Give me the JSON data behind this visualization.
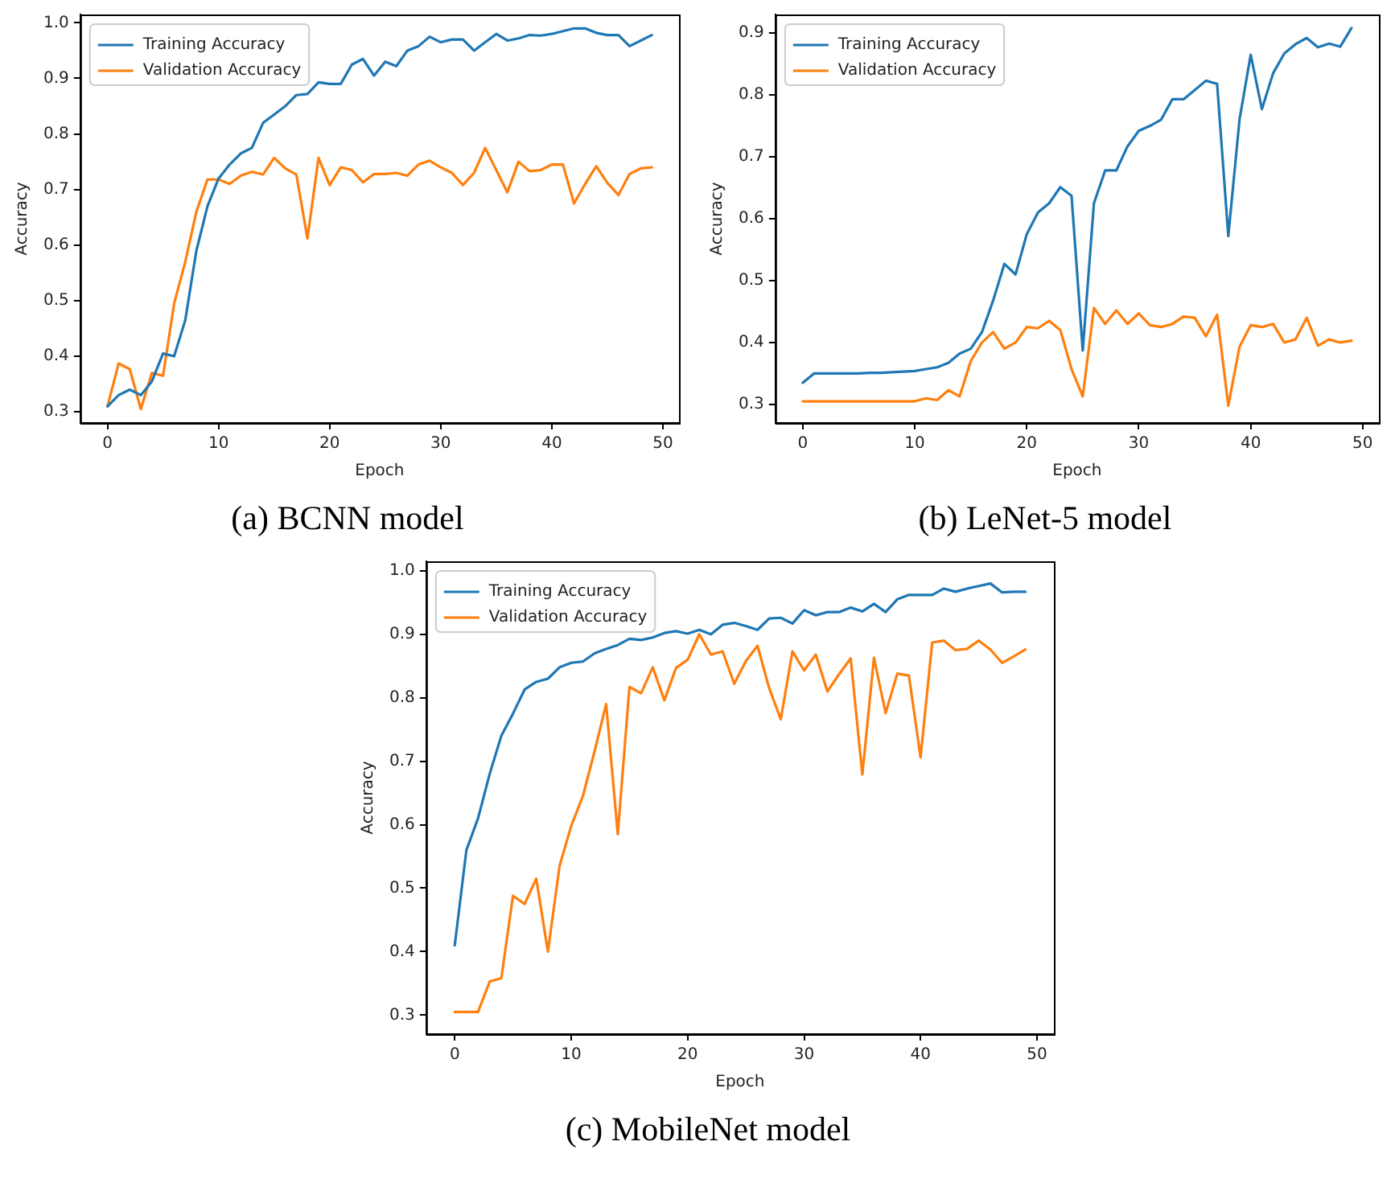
{
  "chart_data": [
    {
      "type": "line",
      "xlabel": "Epoch",
      "ylabel": "Accuracy",
      "annotations": [
        "(a) BCNN model"
      ],
      "legend": "top left",
      "marker": "none",
      "line_style": "solid",
      "x": [
        0,
        1,
        2,
        3,
        4,
        5,
        6,
        7,
        8,
        9,
        10,
        11,
        12,
        13,
        14,
        15,
        16,
        17,
        18,
        19,
        20,
        21,
        22,
        23,
        24,
        25,
        26,
        27,
        28,
        29,
        30,
        31,
        32,
        33,
        34,
        35,
        36,
        37,
        38,
        39,
        40,
        41,
        42,
        43,
        44,
        45,
        46,
        47,
        48,
        49
      ],
      "xlim": [
        -2.45,
        51.45
      ],
      "xticks": [
        0,
        10,
        20,
        30,
        40,
        50
      ],
      "ylim": [
        0.28,
        1.015
      ],
      "yticks": [
        0.3,
        0.4,
        0.5,
        0.6,
        0.7,
        0.8,
        0.9,
        {
          "value": 1,
          "label": "1.0"
        }
      ],
      "series": [
        {
          "name": "Training Accuracy",
          "color": "#1f77b4",
          "values": [
            0.31,
            0.33,
            0.34,
            0.33,
            0.355,
            0.405,
            0.4,
            0.465,
            0.59,
            0.67,
            0.72,
            0.745,
            0.765,
            0.775,
            0.82,
            0.835,
            0.85,
            0.87,
            0.872,
            0.893,
            0.89,
            0.89,
            0.925,
            0.935,
            0.905,
            0.93,
            0.922,
            0.95,
            0.958,
            0.975,
            0.965,
            0.97,
            0.97,
            0.95,
            0.965,
            0.98,
            0.968,
            0.972,
            0.978,
            0.977,
            0.98,
            0.985,
            0.99,
            0.99,
            0.982,
            0.978,
            0.978,
            0.958,
            0.968,
            0.978
          ]
        },
        {
          "name": "Validation Accuracy",
          "color": "#ff7f0e",
          "values": [
            0.31,
            0.387,
            0.377,
            0.305,
            0.37,
            0.365,
            0.495,
            0.57,
            0.66,
            0.718,
            0.718,
            0.71,
            0.725,
            0.732,
            0.727,
            0.757,
            0.738,
            0.727,
            0.612,
            0.757,
            0.708,
            0.74,
            0.735,
            0.713,
            0.728,
            0.728,
            0.73,
            0.725,
            0.745,
            0.752,
            0.74,
            0.73,
            0.708,
            0.73,
            0.775,
            0.735,
            0.695,
            0.75,
            0.733,
            0.735,
            0.745,
            0.745,
            0.675,
            0.71,
            0.742,
            0.712,
            0.69,
            0.728,
            0.738,
            0.74
          ]
        }
      ]
    },
    {
      "type": "line",
      "xlabel": "Epoch",
      "ylabel": "Accuracy",
      "annotations": [
        "(b) LeNet-5 model"
      ],
      "legend": "top left",
      "marker": "none",
      "line_style": "solid",
      "x": [
        0,
        1,
        2,
        3,
        4,
        5,
        6,
        7,
        8,
        9,
        10,
        11,
        12,
        13,
        14,
        15,
        16,
        17,
        18,
        19,
        20,
        21,
        22,
        23,
        24,
        25,
        26,
        27,
        28,
        29,
        30,
        31,
        32,
        33,
        34,
        35,
        36,
        37,
        38,
        39,
        40,
        41,
        42,
        43,
        44,
        45,
        46,
        47,
        48,
        49
      ],
      "xlim": [
        -2.45,
        51.45
      ],
      "xticks": [
        0,
        10,
        20,
        30,
        40,
        50
      ],
      "ylim": [
        0.27,
        0.93
      ],
      "yticks": [
        0.3,
        0.4,
        0.5,
        0.6,
        0.7,
        0.8,
        0.9
      ],
      "series": [
        {
          "name": "Training Accuracy",
          "color": "#1f77b4",
          "values": [
            0.335,
            0.35,
            0.35,
            0.35,
            0.35,
            0.35,
            0.351,
            0.351,
            0.352,
            0.353,
            0.354,
            0.357,
            0.36,
            0.367,
            0.382,
            0.39,
            0.417,
            0.468,
            0.527,
            0.51,
            0.575,
            0.61,
            0.625,
            0.651,
            0.637,
            0.387,
            0.625,
            0.678,
            0.678,
            0.717,
            0.742,
            0.75,
            0.76,
            0.793,
            0.793,
            0.808,
            0.823,
            0.818,
            0.572,
            0.76,
            0.865,
            0.777,
            0.835,
            0.867,
            0.882,
            0.892,
            0.877,
            0.883,
            0.878,
            0.908
          ]
        },
        {
          "name": "Validation Accuracy",
          "color": "#ff7f0e",
          "values": [
            0.305,
            0.305,
            0.305,
            0.305,
            0.305,
            0.305,
            0.305,
            0.305,
            0.305,
            0.305,
            0.305,
            0.31,
            0.307,
            0.323,
            0.313,
            0.37,
            0.4,
            0.417,
            0.39,
            0.4,
            0.425,
            0.423,
            0.435,
            0.42,
            0.357,
            0.313,
            0.456,
            0.43,
            0.452,
            0.43,
            0.447,
            0.428,
            0.425,
            0.43,
            0.442,
            0.44,
            0.41,
            0.445,
            0.298,
            0.393,
            0.428,
            0.425,
            0.43,
            0.4,
            0.405,
            0.44,
            0.395,
            0.405,
            0.4,
            0.403
          ]
        }
      ]
    },
    {
      "type": "line",
      "xlabel": "Epoch",
      "ylabel": "Accuracy",
      "annotations": [
        "(c) MobileNet model"
      ],
      "legend": "top left",
      "marker": "none",
      "line_style": "solid",
      "x": [
        0,
        1,
        2,
        3,
        4,
        5,
        6,
        7,
        8,
        9,
        10,
        11,
        12,
        13,
        14,
        15,
        16,
        17,
        18,
        19,
        20,
        21,
        22,
        23,
        24,
        25,
        26,
        27,
        28,
        29,
        30,
        31,
        32,
        33,
        34,
        35,
        36,
        37,
        38,
        39,
        40,
        41,
        42,
        43,
        44,
        45,
        46,
        47,
        48,
        49
      ],
      "xlim": [
        -2.45,
        51.45
      ],
      "xticks": [
        0,
        10,
        20,
        30,
        40,
        50
      ],
      "ylim": [
        0.27,
        1.015
      ],
      "yticks": [
        0.3,
        0.4,
        0.5,
        0.6,
        0.7,
        0.8,
        0.9,
        {
          "value": 1,
          "label": "1.0"
        }
      ],
      "series": [
        {
          "name": "Training Accuracy",
          "color": "#1f77b4",
          "values": [
            0.41,
            0.56,
            0.61,
            0.68,
            0.74,
            0.775,
            0.813,
            0.825,
            0.83,
            0.848,
            0.855,
            0.857,
            0.87,
            0.877,
            0.883,
            0.893,
            0.891,
            0.895,
            0.902,
            0.905,
            0.901,
            0.907,
            0.9,
            0.915,
            0.918,
            0.913,
            0.907,
            0.925,
            0.926,
            0.917,
            0.938,
            0.93,
            0.935,
            0.935,
            0.942,
            0.936,
            0.948,
            0.935,
            0.955,
            0.962,
            0.962,
            0.962,
            0.972,
            0.967,
            0.972,
            0.976,
            0.98,
            0.966,
            0.967,
            0.967
          ]
        },
        {
          "name": "Validation Accuracy",
          "color": "#ff7f0e",
          "values": [
            0.305,
            0.305,
            0.305,
            0.353,
            0.358,
            0.488,
            0.475,
            0.515,
            0.4,
            0.535,
            0.598,
            0.645,
            0.715,
            0.79,
            0.585,
            0.817,
            0.807,
            0.848,
            0.796,
            0.847,
            0.86,
            0.9,
            0.868,
            0.873,
            0.822,
            0.858,
            0.882,
            0.815,
            0.766,
            0.873,
            0.843,
            0.868,
            0.81,
            0.837,
            0.862,
            0.679,
            0.863,
            0.776,
            0.838,
            0.835,
            0.706,
            0.887,
            0.89,
            0.875,
            0.877,
            0.89,
            0.876,
            0.855,
            0.865,
            0.876
          ]
        }
      ]
    }
  ]
}
